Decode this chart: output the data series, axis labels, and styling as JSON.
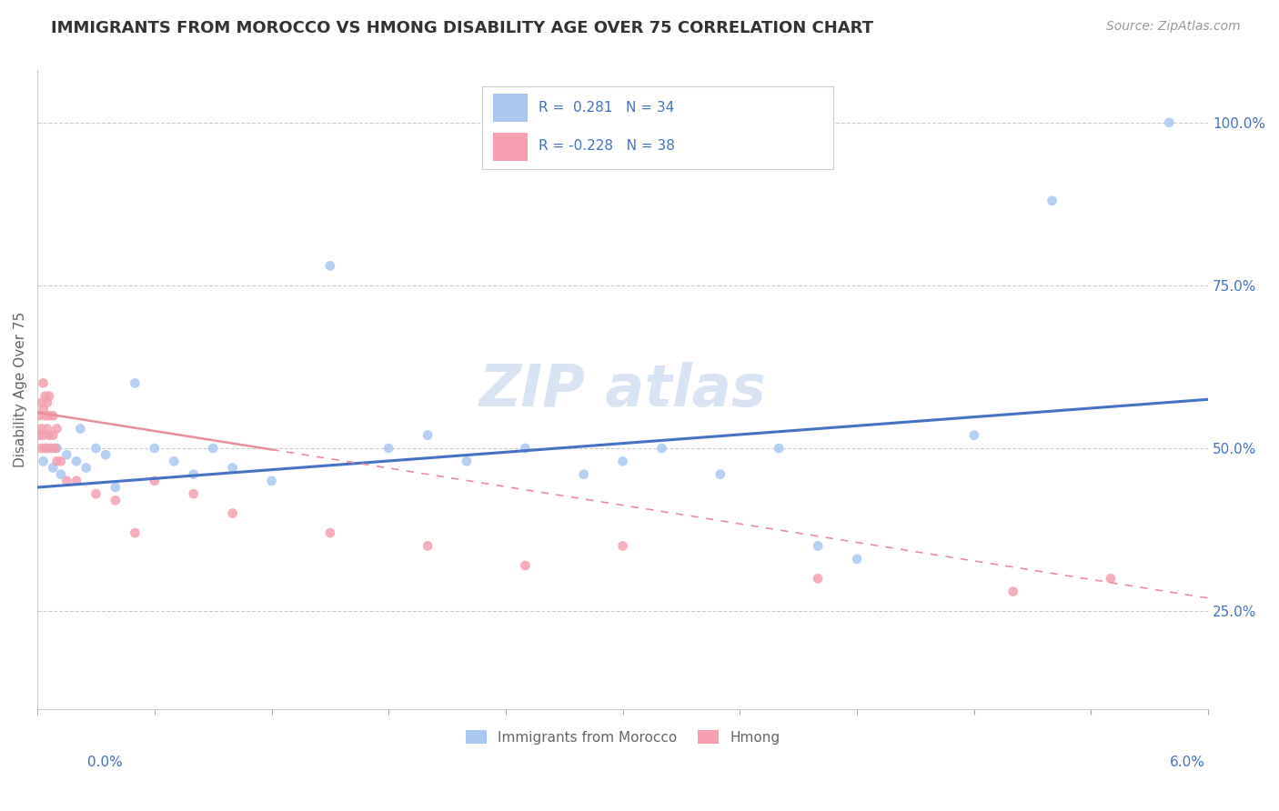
{
  "title": "IMMIGRANTS FROM MOROCCO VS HMONG DISABILITY AGE OVER 75 CORRELATION CHART",
  "source": "Source: ZipAtlas.com",
  "ylabel": "Disability Age Over 75",
  "xlim": [
    0.0,
    0.06
  ],
  "ylim": [
    0.1,
    1.08
  ],
  "ytick_values": [
    0.25,
    0.5,
    0.75,
    1.0
  ],
  "ytick_labels": [
    "25.0%",
    "50.0%",
    "75.0%",
    "100.0%"
  ],
  "morocco_color": "#a8c8f0",
  "hmong_color": "#f4a0b0",
  "morocco_line_color": "#4472c4",
  "hmong_line_color": "#e8909a",
  "morocco_R": 0.281,
  "morocco_N": 34,
  "hmong_R": -0.228,
  "hmong_N": 38,
  "watermark_text": "ZIP atlas",
  "watermark_color": "#c8d8f0",
  "bg_color": "#ffffff",
  "grid_color": "#cccccc",
  "morocco_x": [
    0.0003,
    0.0005,
    0.0008,
    0.001,
    0.0012,
    0.0015,
    0.002,
    0.0022,
    0.0025,
    0.003,
    0.0035,
    0.004,
    0.005,
    0.006,
    0.007,
    0.008,
    0.009,
    0.01,
    0.012,
    0.015,
    0.018,
    0.02,
    0.022,
    0.025,
    0.028,
    0.03,
    0.032,
    0.035,
    0.038,
    0.04,
    0.042,
    0.048,
    0.052,
    0.058
  ],
  "morocco_y": [
    0.48,
    0.5,
    0.47,
    0.5,
    0.46,
    0.49,
    0.48,
    0.53,
    0.47,
    0.5,
    0.49,
    0.44,
    0.6,
    0.5,
    0.48,
    0.46,
    0.5,
    0.47,
    0.45,
    0.78,
    0.5,
    0.52,
    0.48,
    0.5,
    0.46,
    0.48,
    0.5,
    0.46,
    0.5,
    0.35,
    0.33,
    0.52,
    0.88,
    1.0
  ],
  "hmong_x": [
    0.0001,
    0.0001,
    0.0002,
    0.0002,
    0.0002,
    0.0003,
    0.0003,
    0.0003,
    0.0004,
    0.0004,
    0.0004,
    0.0005,
    0.0005,
    0.0006,
    0.0006,
    0.0006,
    0.0007,
    0.0008,
    0.0008,
    0.0009,
    0.001,
    0.001,
    0.0012,
    0.0015,
    0.002,
    0.003,
    0.004,
    0.005,
    0.006,
    0.008,
    0.01,
    0.015,
    0.02,
    0.025,
    0.03,
    0.04,
    0.05,
    0.055
  ],
  "hmong_y": [
    0.52,
    0.55,
    0.5,
    0.53,
    0.57,
    0.52,
    0.56,
    0.6,
    0.5,
    0.55,
    0.58,
    0.53,
    0.57,
    0.52,
    0.55,
    0.58,
    0.5,
    0.52,
    0.55,
    0.5,
    0.48,
    0.53,
    0.48,
    0.45,
    0.45,
    0.43,
    0.42,
    0.37,
    0.45,
    0.43,
    0.4,
    0.37,
    0.35,
    0.32,
    0.35,
    0.3,
    0.28,
    0.3
  ]
}
